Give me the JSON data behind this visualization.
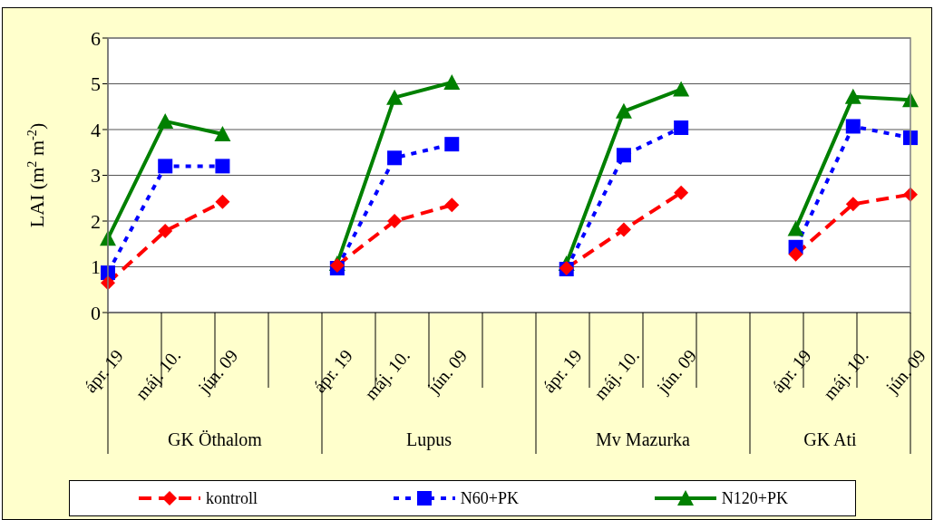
{
  "chart_data": {
    "type": "line",
    "ylabel": "LAI (m$^{2}$ m$^{-2}$)",
    "categories": [
      "ápr. 19",
      "máj. 10.",
      "jún. 09",
      null,
      "ápr. 19",
      "máj. 10.",
      "jún. 09",
      null,
      "ápr. 19",
      "máj. 10.",
      "jún. 09",
      null,
      "ápr. 19",
      "máj. 10.",
      "jún. 09"
    ],
    "annotations": [
      "GK Öthalom",
      "Lupus",
      "Mv Mazurka",
      "GK Ati"
    ],
    "series": [
      {
        "name": "kontroll",
        "color": "#ff0000",
        "marker": "diamond",
        "line_style": "dashed",
        "values": [
          0.65,
          1.78,
          2.42,
          null,
          1.03,
          2.0,
          2.35,
          null,
          0.97,
          1.81,
          2.62,
          null,
          1.27,
          2.37,
          2.58
        ]
      },
      {
        "name": "N60+PK",
        "color": "#0000ff",
        "marker": "square",
        "line_style": "dotted",
        "values": [
          0.87,
          3.2,
          3.2,
          null,
          0.97,
          3.38,
          3.68,
          null,
          0.95,
          3.44,
          4.04,
          null,
          1.43,
          4.07,
          3.82
        ]
      },
      {
        "name": "N120+PK",
        "color": "#008000",
        "marker": "triangle",
        "line_style": "solid",
        "values": [
          1.62,
          4.18,
          3.9,
          null,
          1.07,
          4.7,
          5.03,
          null,
          1.07,
          4.4,
          4.88,
          null,
          1.83,
          4.72,
          4.65
        ]
      }
    ],
    "ylim": [
      0,
      6
    ],
    "yticks": [
      0,
      1,
      2,
      3,
      4,
      5,
      6
    ],
    "grid": "y",
    "legend": "bottom"
  }
}
